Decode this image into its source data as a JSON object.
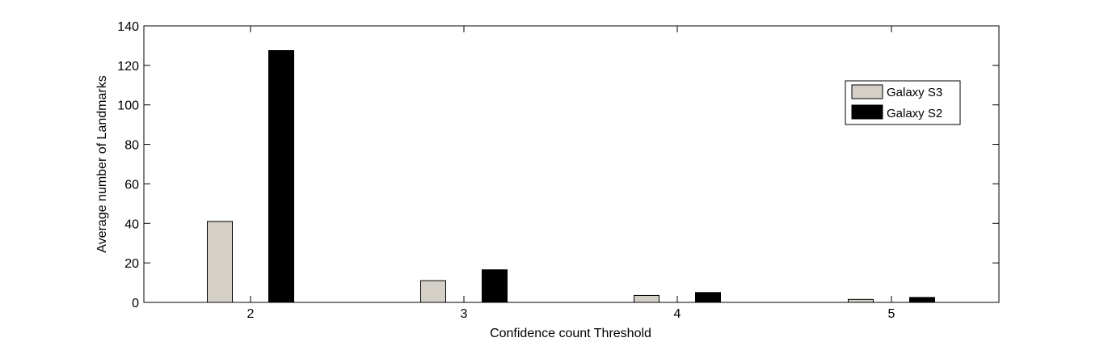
{
  "chart_data": {
    "type": "bar",
    "categories": [
      "2",
      "3",
      "4",
      "5"
    ],
    "series": [
      {
        "name": "Galaxy S3",
        "values": [
          41,
          11,
          3.5,
          1.5
        ],
        "color": "#d4d0c8"
      },
      {
        "name": "Galaxy S2",
        "values": [
          127.5,
          16.5,
          5,
          2.5
        ],
        "color": "#000000"
      }
    ],
    "title": "",
    "xlabel": "Confidence count Threshold",
    "ylabel": "Average number of Landmarks",
    "ylim": [
      0,
      140
    ],
    "yticks": [
      "0",
      "20",
      "40",
      "60",
      "80",
      "100",
      "120",
      "140"
    ],
    "grid": false,
    "legend_position": "top-right"
  }
}
